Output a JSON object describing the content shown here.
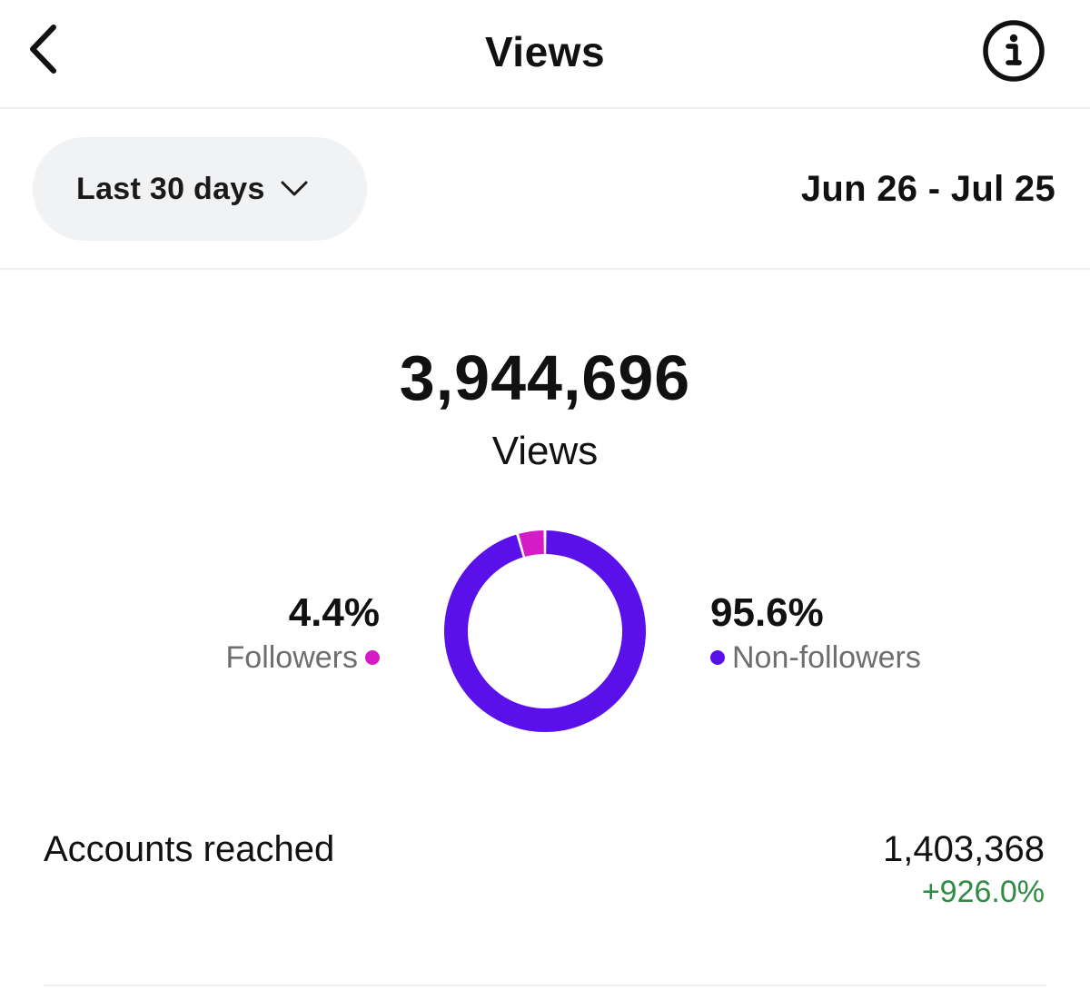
{
  "header": {
    "title": "Views",
    "back_icon": "chevron-left-icon",
    "info_icon": "info-icon"
  },
  "filter": {
    "range_label": "Last 30 days",
    "range_icon": "chevron-down-icon",
    "date_range": "Jun 26 - Jul 25"
  },
  "total": {
    "value": "3,944,696",
    "label": "Views"
  },
  "breakdown": {
    "followers": {
      "percent_label": "4.4%",
      "name": "Followers",
      "color": "#d41bc6"
    },
    "non_followers": {
      "percent_label": "95.6%",
      "name": "Non-followers",
      "color": "#5a10e8"
    }
  },
  "chart_data": {
    "type": "pie",
    "style": "donut",
    "title": "",
    "categories": [
      "Followers",
      "Non-followers"
    ],
    "values": [
      4.4,
      95.6
    ],
    "colors": [
      "#d41bc6",
      "#5a10e8"
    ]
  },
  "metrics": {
    "accounts_reached": {
      "label": "Accounts reached",
      "value": "1,403,368",
      "change": "+926.0%",
      "change_color": "#2e8b43"
    }
  }
}
